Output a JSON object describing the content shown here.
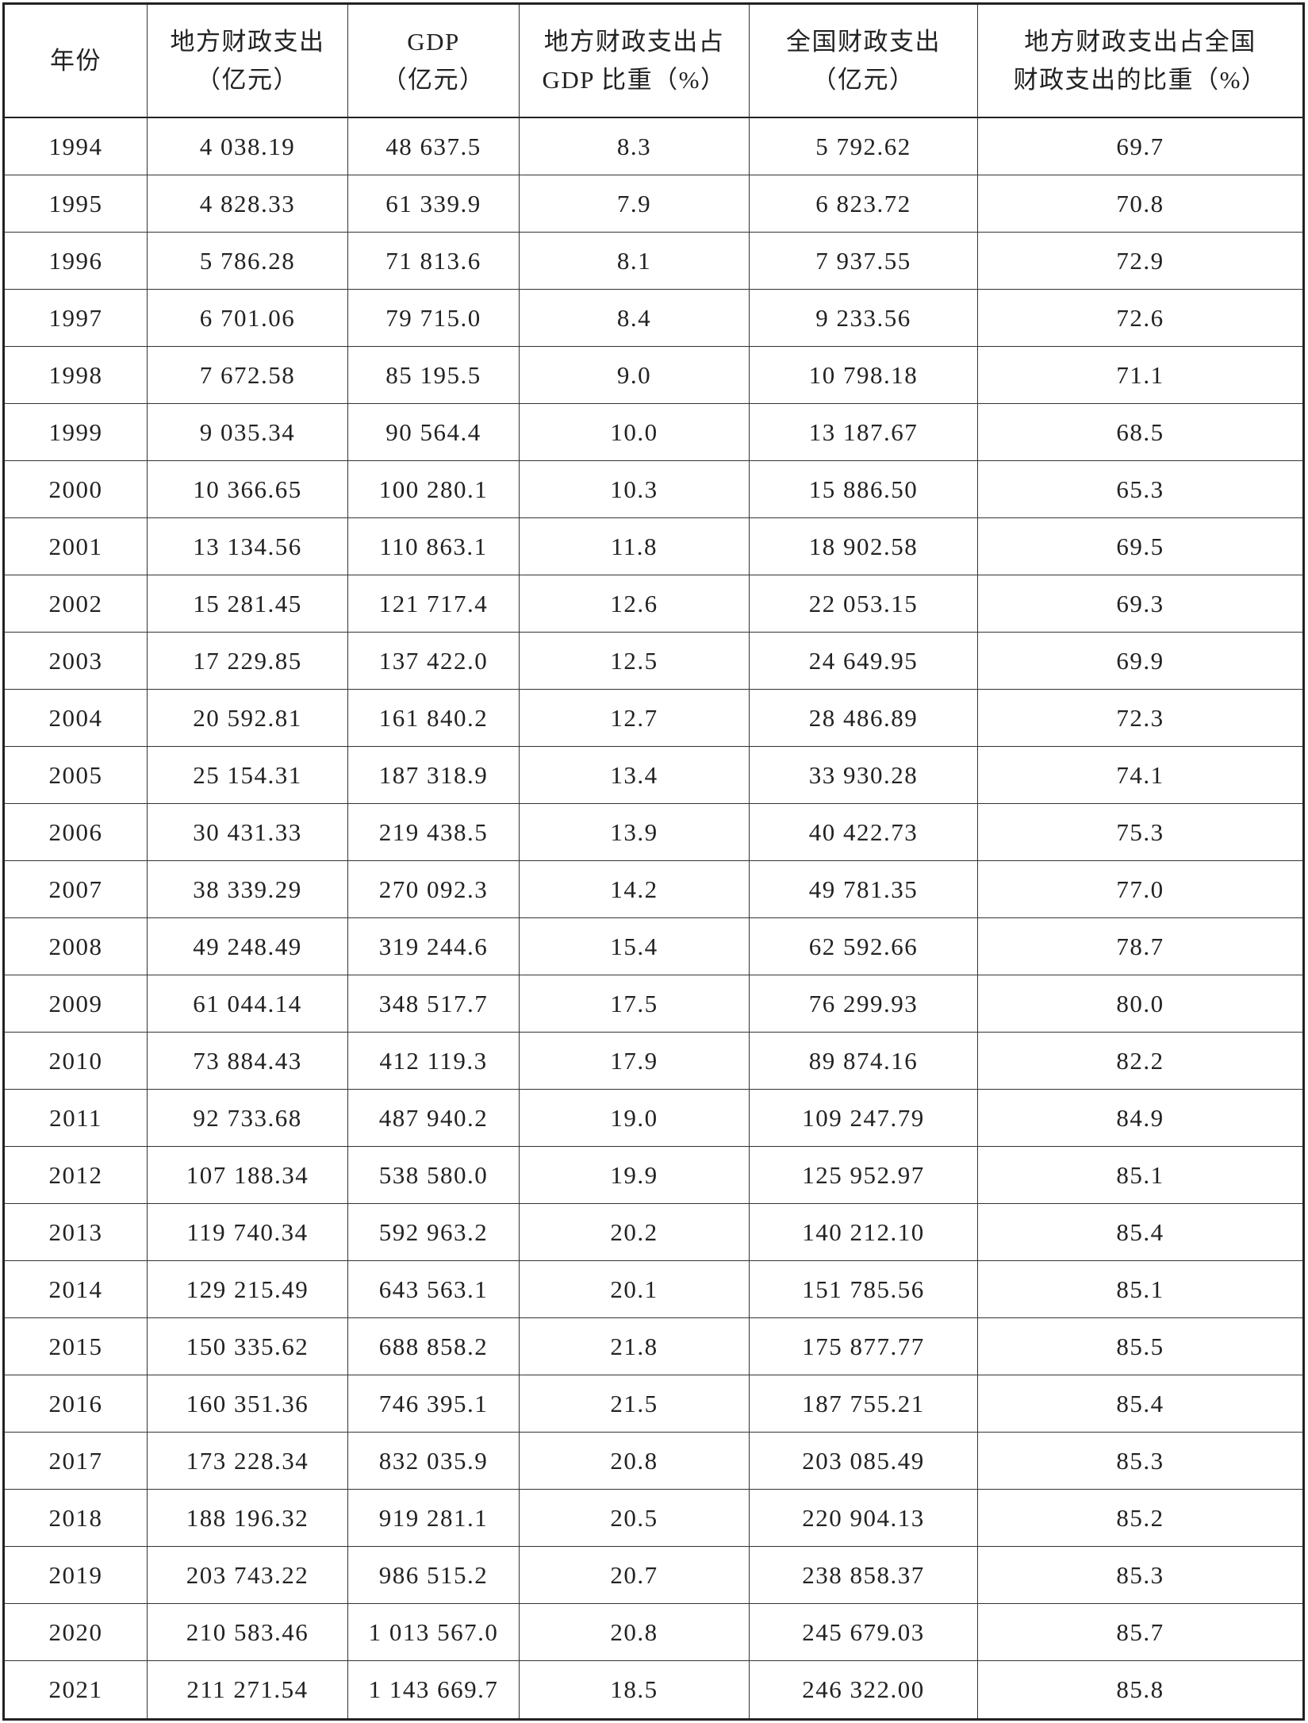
{
  "table": {
    "header": [
      [
        "年份"
      ],
      [
        "地方财政支出",
        "（亿元）"
      ],
      [
        "GDP",
        "（亿元）"
      ],
      [
        "地方财政支出占",
        "GDP 比重（%）"
      ],
      [
        "全国财政支出",
        "（亿元）"
      ],
      [
        "地方财政支出占全国",
        "财政支出的比重（%）"
      ]
    ],
    "rows": [
      [
        "1994",
        "4 038.19",
        "48 637.5",
        "8.3",
        "5 792.62",
        "69.7"
      ],
      [
        "1995",
        "4 828.33",
        "61 339.9",
        "7.9",
        "6 823.72",
        "70.8"
      ],
      [
        "1996",
        "5 786.28",
        "71 813.6",
        "8.1",
        "7 937.55",
        "72.9"
      ],
      [
        "1997",
        "6 701.06",
        "79 715.0",
        "8.4",
        "9 233.56",
        "72.6"
      ],
      [
        "1998",
        "7 672.58",
        "85 195.5",
        "9.0",
        "10 798.18",
        "71.1"
      ],
      [
        "1999",
        "9 035.34",
        "90 564.4",
        "10.0",
        "13 187.67",
        "68.5"
      ],
      [
        "2000",
        "10 366.65",
        "100 280.1",
        "10.3",
        "15 886.50",
        "65.3"
      ],
      [
        "2001",
        "13 134.56",
        "110 863.1",
        "11.8",
        "18 902.58",
        "69.5"
      ],
      [
        "2002",
        "15 281.45",
        "121 717.4",
        "12.6",
        "22 053.15",
        "69.3"
      ],
      [
        "2003",
        "17 229.85",
        "137 422.0",
        "12.5",
        "24 649.95",
        "69.9"
      ],
      [
        "2004",
        "20 592.81",
        "161 840.2",
        "12.7",
        "28 486.89",
        "72.3"
      ],
      [
        "2005",
        "25 154.31",
        "187 318.9",
        "13.4",
        "33 930.28",
        "74.1"
      ],
      [
        "2006",
        "30 431.33",
        "219 438.5",
        "13.9",
        "40 422.73",
        "75.3"
      ],
      [
        "2007",
        "38 339.29",
        "270 092.3",
        "14.2",
        "49 781.35",
        "77.0"
      ],
      [
        "2008",
        "49 248.49",
        "319 244.6",
        "15.4",
        "62 592.66",
        "78.7"
      ],
      [
        "2009",
        "61 044.14",
        "348 517.7",
        "17.5",
        "76 299.93",
        "80.0"
      ],
      [
        "2010",
        "73 884.43",
        "412 119.3",
        "17.9",
        "89 874.16",
        "82.2"
      ],
      [
        "2011",
        "92 733.68",
        "487 940.2",
        "19.0",
        "109 247.79",
        "84.9"
      ],
      [
        "2012",
        "107 188.34",
        "538 580.0",
        "19.9",
        "125 952.97",
        "85.1"
      ],
      [
        "2013",
        "119 740.34",
        "592 963.2",
        "20.2",
        "140 212.10",
        "85.4"
      ],
      [
        "2014",
        "129 215.49",
        "643 563.1",
        "20.1",
        "151 785.56",
        "85.1"
      ],
      [
        "2015",
        "150 335.62",
        "688 858.2",
        "21.8",
        "175 877.77",
        "85.5"
      ],
      [
        "2016",
        "160 351.36",
        "746 395.1",
        "21.5",
        "187 755.21",
        "85.4"
      ],
      [
        "2017",
        "173 228.34",
        "832 035.9",
        "20.8",
        "203 085.49",
        "85.3"
      ],
      [
        "2018",
        "188 196.32",
        "919 281.1",
        "20.5",
        "220 904.13",
        "85.2"
      ],
      [
        "2019",
        "203 743.22",
        "986 515.2",
        "20.7",
        "238 858.37",
        "85.3"
      ],
      [
        "2020",
        "210 583.46",
        "1 013 567.0",
        "20.8",
        "245 679.03",
        "85.7"
      ],
      [
        "2021",
        "211 271.54",
        "1 143 669.7",
        "18.5",
        "246 322.00",
        "85.8"
      ]
    ]
  }
}
